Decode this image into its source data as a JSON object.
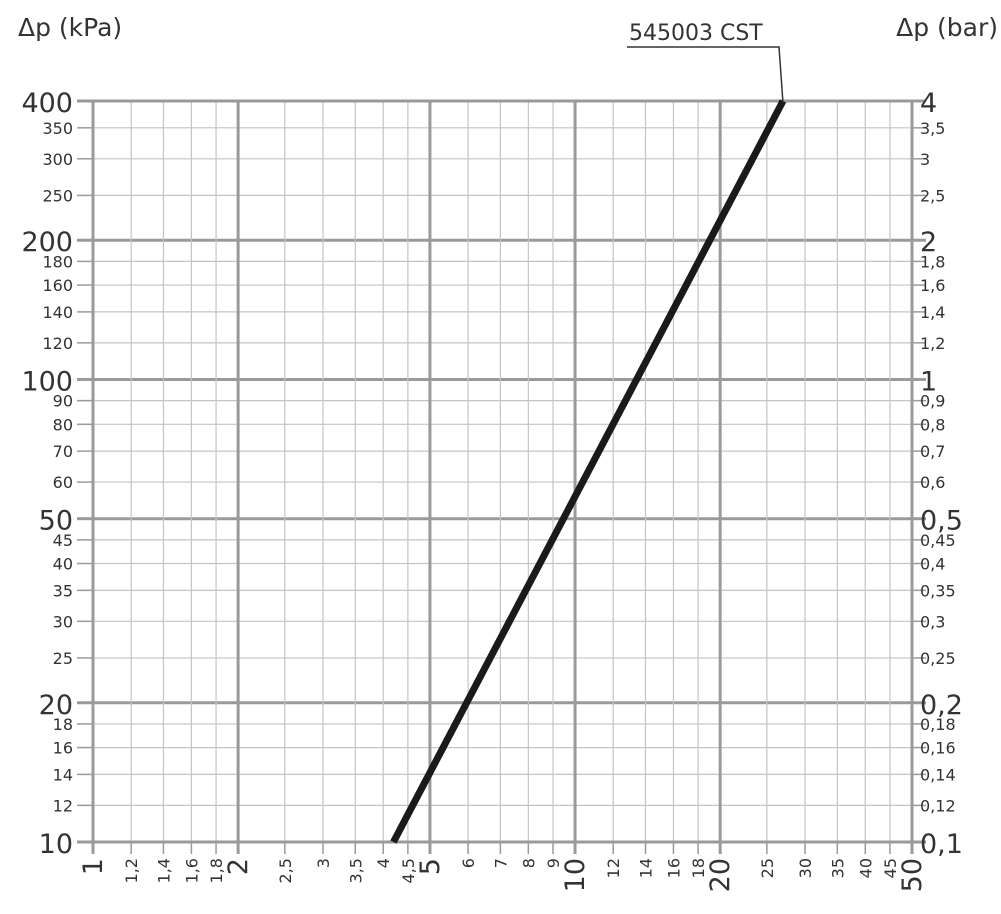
{
  "chart_data": {
    "type": "line",
    "x_scale": "log",
    "y_scale": "log",
    "xlim": [
      1,
      50
    ],
    "ylim": [
      10,
      400
    ],
    "grid": true,
    "y_left_unit": "Δp (kPa)",
    "y_right_unit": "Δp (bar)",
    "y_left_ticks": [
      {
        "value": 400,
        "label": "400",
        "major": true
      },
      {
        "value": 350,
        "label": "350",
        "major": false
      },
      {
        "value": 300,
        "label": "300",
        "major": false
      },
      {
        "value": 250,
        "label": "250",
        "major": false
      },
      {
        "value": 200,
        "label": "200",
        "major": true
      },
      {
        "value": 180,
        "label": "180",
        "major": false
      },
      {
        "value": 160,
        "label": "160",
        "major": false
      },
      {
        "value": 140,
        "label": "140",
        "major": false
      },
      {
        "value": 120,
        "label": "120",
        "major": false
      },
      {
        "value": 100,
        "label": "100",
        "major": true
      },
      {
        "value": 90,
        "label": "90",
        "major": false
      },
      {
        "value": 80,
        "label": "80",
        "major": false
      },
      {
        "value": 70,
        "label": "70",
        "major": false
      },
      {
        "value": 60,
        "label": "60",
        "major": false
      },
      {
        "value": 50,
        "label": "50",
        "major": true
      },
      {
        "value": 45,
        "label": "45",
        "major": false
      },
      {
        "value": 40,
        "label": "40",
        "major": false
      },
      {
        "value": 35,
        "label": "35",
        "major": false
      },
      {
        "value": 30,
        "label": "30",
        "major": false
      },
      {
        "value": 25,
        "label": "25",
        "major": false
      },
      {
        "value": 20,
        "label": "20",
        "major": true
      },
      {
        "value": 18,
        "label": "18",
        "major": false
      },
      {
        "value": 16,
        "label": "16",
        "major": false
      },
      {
        "value": 14,
        "label": "14",
        "major": false
      },
      {
        "value": 12,
        "label": "12",
        "major": false
      },
      {
        "value": 10,
        "label": "10",
        "major": true
      }
    ],
    "y_right_ticks": [
      {
        "value": 400,
        "label": "4",
        "major": true
      },
      {
        "value": 350,
        "label": "3,5",
        "major": false
      },
      {
        "value": 300,
        "label": "3",
        "major": false
      },
      {
        "value": 250,
        "label": "2,5",
        "major": false
      },
      {
        "value": 200,
        "label": "2",
        "major": true
      },
      {
        "value": 180,
        "label": "1,8",
        "major": false
      },
      {
        "value": 160,
        "label": "1,6",
        "major": false
      },
      {
        "value": 140,
        "label": "1,4",
        "major": false
      },
      {
        "value": 120,
        "label": "1,2",
        "major": false
      },
      {
        "value": 100,
        "label": "1",
        "major": true
      },
      {
        "value": 90,
        "label": "0,9",
        "major": false
      },
      {
        "value": 80,
        "label": "0,8",
        "major": false
      },
      {
        "value": 70,
        "label": "0,7",
        "major": false
      },
      {
        "value": 60,
        "label": "0,6",
        "major": false
      },
      {
        "value": 50,
        "label": "0,5",
        "major": true
      },
      {
        "value": 45,
        "label": "0,45",
        "major": false
      },
      {
        "value": 40,
        "label": "0,4",
        "major": false
      },
      {
        "value": 35,
        "label": "0,35",
        "major": false
      },
      {
        "value": 30,
        "label": "0,3",
        "major": false
      },
      {
        "value": 25,
        "label": "0,25",
        "major": false
      },
      {
        "value": 20,
        "label": "0,2",
        "major": true
      },
      {
        "value": 18,
        "label": "0,18",
        "major": false
      },
      {
        "value": 16,
        "label": "0,16",
        "major": false
      },
      {
        "value": 14,
        "label": "0,14",
        "major": false
      },
      {
        "value": 12,
        "label": "0,12",
        "major": false
      },
      {
        "value": 10,
        "label": "0,1",
        "major": true
      }
    ],
    "x_ticks": [
      {
        "value": 1,
        "label": "1",
        "major": true
      },
      {
        "value": 1.2,
        "label": "1,2",
        "major": false
      },
      {
        "value": 1.4,
        "label": "1,4",
        "major": false
      },
      {
        "value": 1.6,
        "label": "1,6",
        "major": false
      },
      {
        "value": 1.8,
        "label": "1,8",
        "major": false
      },
      {
        "value": 2,
        "label": "2",
        "major": true
      },
      {
        "value": 2.5,
        "label": "2,5",
        "major": false
      },
      {
        "value": 3,
        "label": "3",
        "major": false
      },
      {
        "value": 3.5,
        "label": "3,5",
        "major": false
      },
      {
        "value": 4,
        "label": "4",
        "major": false
      },
      {
        "value": 4.5,
        "label": "4,5",
        "major": false
      },
      {
        "value": 5,
        "label": "5",
        "major": true
      },
      {
        "value": 6,
        "label": "6",
        "major": false
      },
      {
        "value": 7,
        "label": "7",
        "major": false
      },
      {
        "value": 8,
        "label": "8",
        "major": false
      },
      {
        "value": 9,
        "label": "9",
        "major": false
      },
      {
        "value": 10,
        "label": "10",
        "major": true
      },
      {
        "value": 12,
        "label": "12",
        "major": false
      },
      {
        "value": 14,
        "label": "14",
        "major": false
      },
      {
        "value": 16,
        "label": "16",
        "major": false
      },
      {
        "value": 18,
        "label": "18",
        "major": false
      },
      {
        "value": 20,
        "label": "20",
        "major": true
      },
      {
        "value": 25,
        "label": "25",
        "major": false
      },
      {
        "value": 30,
        "label": "30",
        "major": false
      },
      {
        "value": 35,
        "label": "35",
        "major": false
      },
      {
        "value": 40,
        "label": "40",
        "major": false
      },
      {
        "value": 45,
        "label": "45",
        "major": false
      },
      {
        "value": 50,
        "label": "50",
        "major": true
      }
    ],
    "series": [
      {
        "name": "545003 CST",
        "color": "#1a1a1a",
        "points": [
          {
            "x": 4.2,
            "y": 10
          },
          {
            "x": 27,
            "y": 400
          }
        ]
      }
    ]
  }
}
